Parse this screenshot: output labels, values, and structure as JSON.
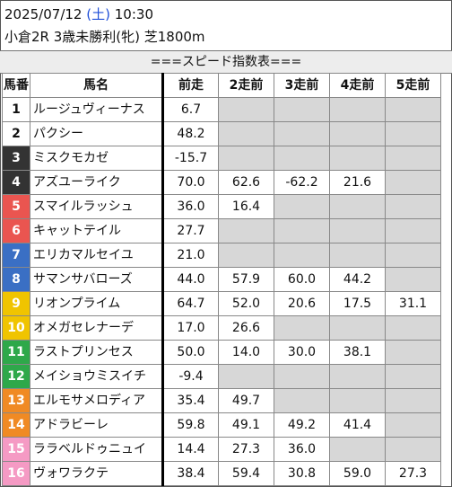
{
  "header": {
    "date": "2025/07/12",
    "weekday_open": "(",
    "weekday": "土",
    "weekday_close": ")",
    "time": "10:30",
    "race": "小倉2R 3歳未勝利(牝) 芝1800m"
  },
  "title": "===スピード指数表===",
  "columns": [
    "馬番",
    "馬名",
    "前走",
    "2走前",
    "3走前",
    "4走前",
    "5走前"
  ],
  "waku_colors": {
    "1": "#ffffff",
    "2": "#ffffff",
    "3": "#333333",
    "4": "#333333",
    "5": "#ea5550",
    "6": "#ea5550",
    "7": "#3a6fc4",
    "8": "#3a6fc4",
    "9": "#f0c400",
    "10": "#f0c400",
    "11": "#2ea84a",
    "12": "#2ea84a",
    "13": "#f08a24",
    "14": "#f08a24",
    "15": "#f59ac4",
    "16": "#f59ac4"
  },
  "rows": [
    {
      "num": "1",
      "name": "ルージュヴィーナス",
      "vals": [
        "6.7",
        "",
        "",
        "",
        ""
      ]
    },
    {
      "num": "2",
      "name": "パクシー",
      "vals": [
        "48.2",
        "",
        "",
        "",
        ""
      ]
    },
    {
      "num": "3",
      "name": "ミスクモカゼ",
      "vals": [
        "-15.7",
        "",
        "",
        "",
        ""
      ]
    },
    {
      "num": "4",
      "name": "アズユーライク",
      "vals": [
        "70.0",
        "62.6",
        "-62.2",
        "21.6",
        ""
      ]
    },
    {
      "num": "5",
      "name": "スマイルラッシュ",
      "vals": [
        "36.0",
        "16.4",
        "",
        "",
        ""
      ]
    },
    {
      "num": "6",
      "name": "キャットテイル",
      "vals": [
        "27.7",
        "",
        "",
        "",
        ""
      ]
    },
    {
      "num": "7",
      "name": "エリカマルセイユ",
      "vals": [
        "21.0",
        "",
        "",
        "",
        ""
      ]
    },
    {
      "num": "8",
      "name": "サマンサバローズ",
      "vals": [
        "44.0",
        "57.9",
        "60.0",
        "44.2",
        ""
      ]
    },
    {
      "num": "9",
      "name": "リオンプライム",
      "vals": [
        "64.7",
        "52.0",
        "20.6",
        "17.5",
        "31.1"
      ]
    },
    {
      "num": "10",
      "name": "オメガセレナーデ",
      "vals": [
        "17.0",
        "26.6",
        "",
        "",
        ""
      ]
    },
    {
      "num": "11",
      "name": "ラストプリンセス",
      "vals": [
        "50.0",
        "14.0",
        "30.0",
        "38.1",
        ""
      ]
    },
    {
      "num": "12",
      "name": "メイショウミスイチ",
      "vals": [
        "-9.4",
        "",
        "",
        "",
        ""
      ]
    },
    {
      "num": "13",
      "name": "エルモサメロディア",
      "vals": [
        "35.4",
        "49.7",
        "",
        "",
        ""
      ]
    },
    {
      "num": "14",
      "name": "アドラビーレ",
      "vals": [
        "59.8",
        "49.1",
        "49.2",
        "41.4",
        ""
      ]
    },
    {
      "num": "15",
      "name": "ララベルドゥニュイ",
      "vals": [
        "14.4",
        "27.3",
        "36.0",
        "",
        ""
      ]
    },
    {
      "num": "16",
      "name": "ヴォワラクテ",
      "vals": [
        "38.4",
        "59.4",
        "30.8",
        "59.0",
        "27.3"
      ]
    }
  ]
}
